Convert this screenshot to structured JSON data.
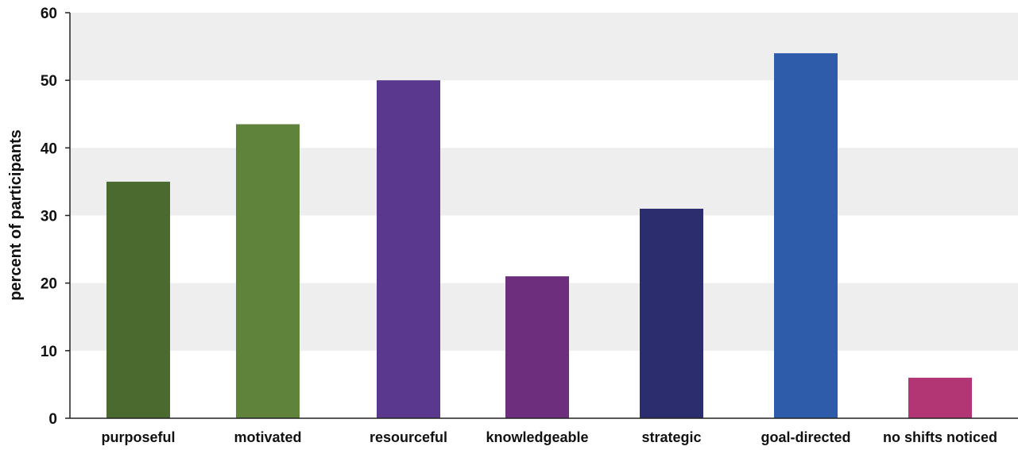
{
  "chart_data": {
    "type": "bar",
    "title": "",
    "xlabel": "",
    "ylabel": "percent of participants",
    "ylim": [
      0,
      60
    ],
    "yticks": [
      0,
      10,
      20,
      30,
      40,
      50,
      60
    ],
    "categories": [
      "purposeful",
      "motivated",
      "resourceful",
      "knowledgeable",
      "strategic",
      "goal-directed",
      "no shifts noticed"
    ],
    "values": [
      35,
      43.5,
      50,
      21,
      31,
      54,
      6
    ],
    "bar_colors": [
      "#4a6a30",
      "#5f833a",
      "#59388d",
      "#6c2e7d",
      "#2b2d6e",
      "#2f5bab",
      "#b13673"
    ],
    "grid": "alternating horizontal bands",
    "band_color": "#eeeeee",
    "legend": "none"
  }
}
